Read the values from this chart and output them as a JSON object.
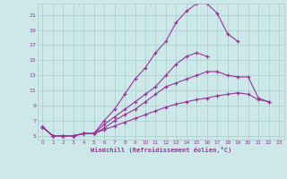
{
  "xlabel": "Windchill (Refroidissement éolien,°C)",
  "bg_color": "#cce8e8",
  "line_color": "#993399",
  "grid_color": "#aacccc",
  "xlim": [
    -0.5,
    23.5
  ],
  "ylim": [
    4.5,
    22.5
  ],
  "xticks": [
    0,
    1,
    2,
    3,
    4,
    5,
    6,
    7,
    8,
    9,
    10,
    11,
    12,
    13,
    14,
    15,
    16,
    17,
    18,
    19,
    20,
    21,
    22,
    23
  ],
  "yticks": [
    5,
    7,
    9,
    11,
    13,
    15,
    17,
    19,
    21
  ],
  "series": [
    [
      6.2,
      5.0,
      5.0,
      5.0,
      5.3,
      5.3,
      7.0,
      8.5,
      10.5,
      12.5,
      14.0,
      16.0,
      17.5,
      20.0,
      21.5,
      22.5,
      22.5,
      21.2,
      18.5,
      17.5,
      null,
      null,
      null,
      null
    ],
    [
      6.2,
      5.0,
      5.0,
      5.0,
      5.3,
      5.3,
      6.5,
      7.5,
      8.5,
      9.5,
      10.5,
      11.5,
      13.0,
      14.5,
      15.5,
      16.0,
      15.5,
      null,
      null,
      null,
      null,
      null,
      null,
      null
    ],
    [
      6.2,
      5.0,
      5.0,
      5.0,
      5.3,
      5.3,
      6.0,
      7.0,
      7.8,
      8.5,
      9.5,
      10.5,
      11.5,
      12.0,
      12.5,
      13.0,
      13.5,
      13.5,
      13.0,
      12.8,
      12.8,
      10.0,
      9.5,
      null
    ],
    [
      6.2,
      5.0,
      5.0,
      5.0,
      5.3,
      5.3,
      5.8,
      6.3,
      6.8,
      7.3,
      7.8,
      8.3,
      8.8,
      9.2,
      9.5,
      9.8,
      10.0,
      10.3,
      10.5,
      10.7,
      10.5,
      9.8,
      9.5,
      null
    ]
  ]
}
